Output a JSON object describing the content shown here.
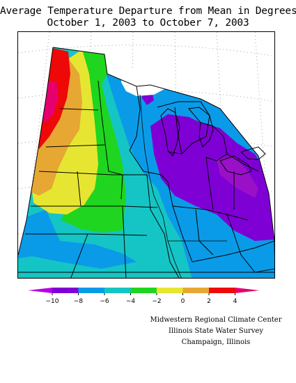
{
  "title": {
    "line1": "Average Temperature Departure from Mean in Degrees F",
    "line2": "October 1, 2003 to October 7, 2003"
  },
  "colors": {
    "purple": "#7f00d5",
    "magenta_purple": "#9a10c8",
    "blue": "#0a9be8",
    "cyan": "#15c5c5",
    "green": "#1fd51f",
    "yellow": "#e6e632",
    "orange": "#e6a733",
    "red": "#ef0808",
    "magenta": "#e6006e"
  },
  "legend": {
    "bins": [
      {
        "color": "#7f00d5"
      },
      {
        "color": "#0a9be8"
      },
      {
        "color": "#15c5c5"
      },
      {
        "color": "#1fd51f"
      },
      {
        "color": "#e6e632"
      },
      {
        "color": "#e6a733"
      },
      {
        "color": "#ef0808"
      }
    ],
    "low_arrow_color": "#b400e6",
    "high_arrow_color": "#e6006e",
    "ticks": [
      "−10",
      "−8",
      "−6",
      "−4",
      "−2",
      "0",
      "2",
      "4"
    ]
  },
  "credits": {
    "line1": "Midwestern Regional Climate Center",
    "line2": "Illinois State Water Survey",
    "line3": "Champaign, Illinois"
  }
}
